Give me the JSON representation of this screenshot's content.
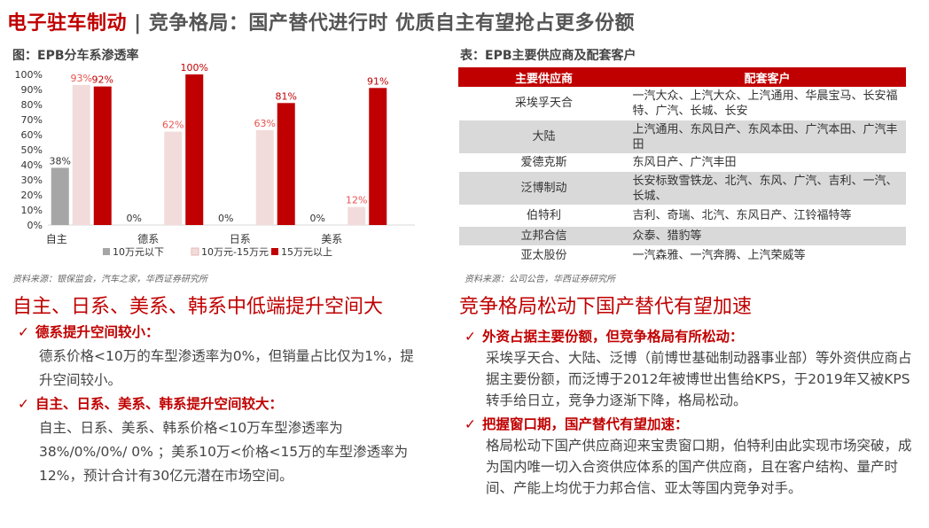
{
  "page": {
    "title_red": "电子驻车制动",
    "title_sep": " | ",
    "title_rest": "竞争格局：国产替代进行时  优质自主有望抢占更多份额"
  },
  "left": {
    "figure_label": "图：EPB分车系渗透率",
    "source": "资料来源：银保监会，汽车之家，华西证券研究所",
    "headline": "自主、日系、美系、韩系中低端提升空间大",
    "bullets": [
      {
        "head": "德系提升空间较小：",
        "body": "德系价格<10万的车型渗透率为0%，但销量占比仅为1%，提升空间较小。"
      },
      {
        "head": "自主、日系、美系、韩系提升空间较大：",
        "body": "自主、日系、美系、韩系价格<10万车型渗透率为38%/0%/0%/ 0% ；美系10万<价格<15万的车型渗透率为12%，预计合计有30亿元潜在市场空间。"
      }
    ]
  },
  "right": {
    "table_label": "表：EPB主要供应商及配套客户",
    "source": "资料来源：公司公告，华西证券研究所",
    "headline": "竞争格局松动下国产替代有望加速",
    "table": {
      "headers": [
        "主要供应商",
        "配套客户"
      ],
      "rows": [
        {
          "supplier": "采埃孚天合",
          "clients": "一汽大众、上汽大众、上汽通用、华晨宝马、长安福特、广汽、长城、长安"
        },
        {
          "supplier": "大陆",
          "clients": "上汽通用、东风日产、东风本田、广汽本田、广汽丰田"
        },
        {
          "supplier": "爱德克斯",
          "clients": "东风日产、广汽丰田"
        },
        {
          "supplier": "泛博制动",
          "clients": "长安标致雪铁龙、北汽、东风、广汽、吉利、一汽、长城、"
        },
        {
          "supplier": "伯特利",
          "clients": "吉利、奇瑞、北汽、东风日产、江铃福特等"
        },
        {
          "supplier": "立邦合信",
          "clients": "众泰、猎豹等"
        },
        {
          "supplier": "亚太股份",
          "clients": "一汽森雅、一汽奔腾、上汽荣威等"
        }
      ]
    },
    "bullets": [
      {
        "head": "外资占据主要份额，但竞争格局有所松动：",
        "body": "采埃孚天合、大陆、泛博（前博世基础制动器事业部）等外资供应商占据主要份额，而泛博于2012年被博世出售给KPS，于2019年又被KPS转手给日立，竞争力逐渐下降，格局松动。"
      },
      {
        "head": "把握窗口期，国产替代有望加速：",
        "body": "格局松动下国产供应商迎来宝贵窗口期，伯特利由此实现市场突破，成为国内唯一切入合资供应体系的国产供应商，且在客户结构、量产时间、产能上均优于力邦合信、亚太等国内竞争对手。"
      }
    ],
    "check_icon": "✓"
  },
  "colors": {
    "brand_red": "#c00000",
    "gray_bar": "#a6a6a6",
    "pink_bar": "#f2dcdb"
  },
  "chart_data": {
    "type": "bar",
    "categories": [
      "自主",
      "德系",
      "日系",
      "美系"
    ],
    "ylim": [
      0,
      100
    ],
    "yticks": [
      "0%",
      "10%",
      "20%",
      "30%",
      "40%",
      "50%",
      "60%",
      "70%",
      "80%",
      "90%",
      "100%"
    ],
    "legend_position": "bottom",
    "grid": false,
    "series": [
      {
        "name": "10万元以下",
        "color": "#a6a6a6",
        "values": [
          38,
          0,
          0,
          0
        ],
        "labels": [
          "38%",
          "0%",
          "0%",
          "0%"
        ],
        "label_color": "#333333"
      },
      {
        "name": "10万元-15万元",
        "color": "#f2dcdb",
        "values": [
          93,
          62,
          63,
          12
        ],
        "labels": [
          "93%",
          "62%",
          "63%",
          "12%"
        ],
        "label_color": "#e8534f"
      },
      {
        "name": "15万元以上",
        "color": "#c00000",
        "values": [
          92,
          100,
          81,
          91
        ],
        "labels": [
          "92%",
          "100%",
          "81%",
          "91%"
        ],
        "label_color": "#c00000"
      }
    ]
  }
}
